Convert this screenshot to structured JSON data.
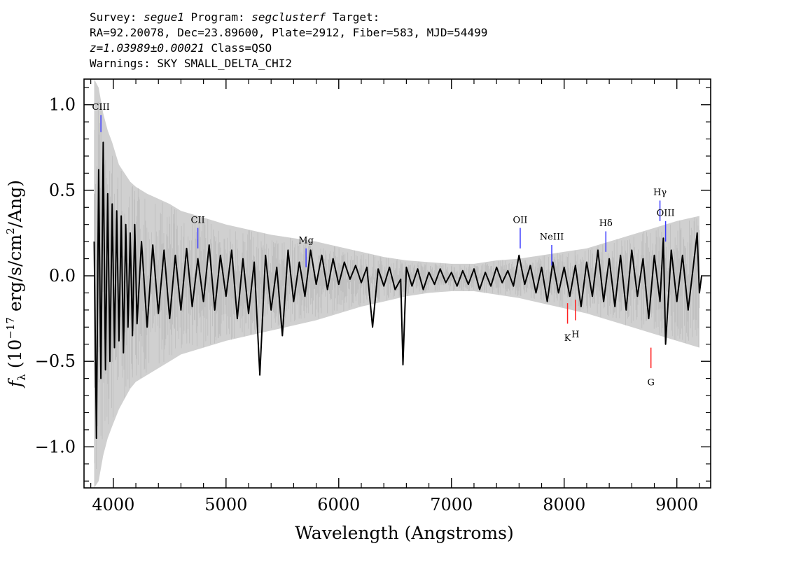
{
  "header": {
    "survey_label": "Survey:",
    "survey": "segue1",
    "program_label": "Program:",
    "program": "segclusterf",
    "target_label": "Target:",
    "line2": "RA=92.20078, Dec=23.89600, Plate=2912, Fiber=583, MJD=54499",
    "redshift": "z=1.03989±0.00021",
    "class_text": "Class=QSO",
    "warnings": "Warnings: SKY SMALL_DELTA_CHI2"
  },
  "chart_data": {
    "type": "line",
    "xlabel": "Wavelength (Angstroms)",
    "ylabel_f": "f",
    "ylabel_sub": "λ",
    "ylabel_paren_open": "(10",
    "ylabel_exp": "−17",
    "ylabel_units": "erg/s/cm",
    "ylabel_sq": "2",
    "ylabel_tail": "/Ang)",
    "xlim": [
      3740,
      9300
    ],
    "ylim": [
      -1.24,
      1.15
    ],
    "x_ticks": [
      4000,
      5000,
      6000,
      7000,
      8000,
      9000
    ],
    "x_tick_labels": [
      "4000",
      "5000",
      "6000",
      "7000",
      "8000",
      "9000"
    ],
    "y_ticks": [
      1.0,
      0.5,
      0.0,
      -0.5,
      -1.0
    ],
    "y_tick_labels": [
      "1.0",
      "0.5",
      "0.0",
      "−0.5",
      "−1.0"
    ],
    "series": [
      {
        "role": "spectrum",
        "color": "#000000",
        "x": [
          3830,
          3850,
          3870,
          3890,
          3910,
          3930,
          3950,
          3970,
          3990,
          4010,
          4030,
          4050,
          4070,
          4090,
          4110,
          4130,
          4150,
          4170,
          4190,
          4210,
          4250,
          4300,
          4350,
          4400,
          4450,
          4500,
          4550,
          4600,
          4650,
          4700,
          4750,
          4800,
          4850,
          4900,
          4950,
          5000,
          5050,
          5100,
          5150,
          5200,
          5250,
          5300,
          5350,
          5400,
          5450,
          5500,
          5550,
          5600,
          5650,
          5700,
          5750,
          5800,
          5850,
          5900,
          5950,
          6000,
          6050,
          6100,
          6150,
          6200,
          6250,
          6300,
          6350,
          6400,
          6450,
          6500,
          6550,
          6570,
          6600,
          6650,
          6700,
          6750,
          6800,
          6850,
          6900,
          6950,
          7000,
          7050,
          7100,
          7150,
          7200,
          7250,
          7300,
          7350,
          7400,
          7450,
          7500,
          7550,
          7600,
          7650,
          7700,
          7750,
          7800,
          7850,
          7900,
          7950,
          8000,
          8050,
          8100,
          8150,
          8200,
          8250,
          8300,
          8350,
          8400,
          8450,
          8500,
          8550,
          8600,
          8650,
          8700,
          8750,
          8800,
          8850,
          8880,
          8900,
          8950,
          9000,
          9050,
          9100,
          9150,
          9180,
          9200,
          9220
        ],
        "y": [
          0.2,
          -0.95,
          0.62,
          -0.6,
          0.78,
          -0.55,
          0.48,
          -0.5,
          0.42,
          -0.42,
          0.38,
          -0.38,
          0.35,
          -0.45,
          0.3,
          -0.3,
          0.25,
          -0.35,
          0.3,
          -0.28,
          0.2,
          -0.3,
          0.18,
          -0.22,
          0.15,
          -0.25,
          0.12,
          -0.2,
          0.16,
          -0.18,
          0.1,
          -0.15,
          0.18,
          -0.2,
          0.12,
          -0.12,
          0.15,
          -0.25,
          0.1,
          -0.22,
          0.08,
          -0.58,
          0.12,
          -0.2,
          0.05,
          -0.35,
          0.15,
          -0.15,
          0.08,
          -0.12,
          0.15,
          -0.05,
          0.12,
          -0.08,
          0.1,
          -0.05,
          0.08,
          -0.02,
          0.06,
          -0.04,
          0.05,
          -0.3,
          0.04,
          -0.06,
          0.05,
          -0.08,
          -0.02,
          -0.52,
          0.05,
          -0.06,
          0.04,
          -0.08,
          0.02,
          -0.05,
          0.04,
          -0.04,
          0.02,
          -0.06,
          0.03,
          -0.05,
          0.04,
          -0.08,
          0.02,
          -0.06,
          0.05,
          -0.04,
          0.03,
          -0.06,
          0.12,
          -0.05,
          0.06,
          -0.1,
          0.05,
          -0.15,
          0.08,
          -0.1,
          0.05,
          -0.12,
          0.06,
          -0.18,
          0.08,
          -0.12,
          0.15,
          -0.15,
          0.1,
          -0.18,
          0.12,
          -0.2,
          0.15,
          -0.12,
          0.1,
          -0.25,
          0.12,
          -0.15,
          0.22,
          -0.4,
          0.15,
          -0.15,
          0.12,
          -0.2,
          0.08,
          0.25,
          -0.1,
          0.0
        ]
      },
      {
        "role": "error",
        "color": "#c8c8c8",
        "x": [
          3830,
          3870,
          3910,
          3950,
          3990,
          4050,
          4100,
          4150,
          4200,
          4300,
          4400,
          4500,
          4600,
          4700,
          4800,
          4900,
          5000,
          5200,
          5400,
          5600,
          5800,
          6000,
          6200,
          6400,
          6600,
          6800,
          7000,
          7200,
          7400,
          7600,
          7800,
          8000,
          8200,
          8400,
          8600,
          8800,
          9000,
          9200
        ],
        "upper": [
          1.15,
          1.1,
          0.95,
          0.85,
          0.78,
          0.65,
          0.6,
          0.55,
          0.52,
          0.48,
          0.45,
          0.42,
          0.38,
          0.36,
          0.34,
          0.32,
          0.3,
          0.27,
          0.24,
          0.22,
          0.2,
          0.17,
          0.14,
          0.11,
          0.09,
          0.08,
          0.07,
          0.07,
          0.09,
          0.1,
          0.12,
          0.14,
          0.16,
          0.2,
          0.24,
          0.28,
          0.32,
          0.35
        ],
        "lower": [
          -1.24,
          -1.2,
          -1.05,
          -0.95,
          -0.88,
          -0.78,
          -0.72,
          -0.66,
          -0.62,
          -0.58,
          -0.54,
          -0.5,
          -0.46,
          -0.44,
          -0.42,
          -0.4,
          -0.38,
          -0.35,
          -0.32,
          -0.29,
          -0.26,
          -0.22,
          -0.18,
          -0.15,
          -0.12,
          -0.1,
          -0.09,
          -0.09,
          -0.11,
          -0.13,
          -0.16,
          -0.19,
          -0.22,
          -0.26,
          -0.3,
          -0.34,
          -0.38,
          -0.42
        ]
      }
    ],
    "emission_lines": [
      {
        "label": "CIII",
        "x": 3890,
        "y0": 0.84,
        "y1": 0.94,
        "label_y": 0.97,
        "color": "#3a3aff"
      },
      {
        "label": "CII",
        "x": 4750,
        "y0": 0.16,
        "y1": 0.28,
        "label_y": 0.31,
        "color": "#3a3aff"
      },
      {
        "label": "Mg",
        "x": 5710,
        "y0": 0.05,
        "y1": 0.16,
        "label_y": 0.19,
        "color": "#3a3aff"
      },
      {
        "label": "OII",
        "x": 7610,
        "y0": 0.16,
        "y1": 0.28,
        "label_y": 0.31,
        "color": "#3a3aff"
      },
      {
        "label": "NeIII",
        "x": 7890,
        "y0": 0.06,
        "y1": 0.18,
        "label_y": 0.21,
        "color": "#3a3aff"
      },
      {
        "label": "Hδ",
        "x": 8370,
        "y0": 0.14,
        "y1": 0.26,
        "label_y": 0.29,
        "color": "#3a3aff"
      },
      {
        "label": "Hγ",
        "x": 8850,
        "y0": 0.32,
        "y1": 0.44,
        "label_y": 0.47,
        "color": "#3a3aff"
      },
      {
        "label": "OIII",
        "x": 8900,
        "y0": 0.2,
        "y1": 0.32,
        "label_y": 0.35,
        "color": "#3a3aff"
      }
    ],
    "absorption_lines": [
      {
        "label": "K",
        "x": 8030,
        "y0": -0.16,
        "y1": -0.28,
        "label_y": -0.34,
        "color": "#ff2020"
      },
      {
        "label": "H",
        "x": 8100,
        "y0": -0.14,
        "y1": -0.26,
        "label_y": -0.32,
        "color": "#ff2020"
      },
      {
        "label": "G",
        "x": 8770,
        "y0": -0.42,
        "y1": -0.54,
        "label_y": -0.6,
        "color": "#ff2020"
      }
    ],
    "grid": false,
    "legend": "none"
  }
}
